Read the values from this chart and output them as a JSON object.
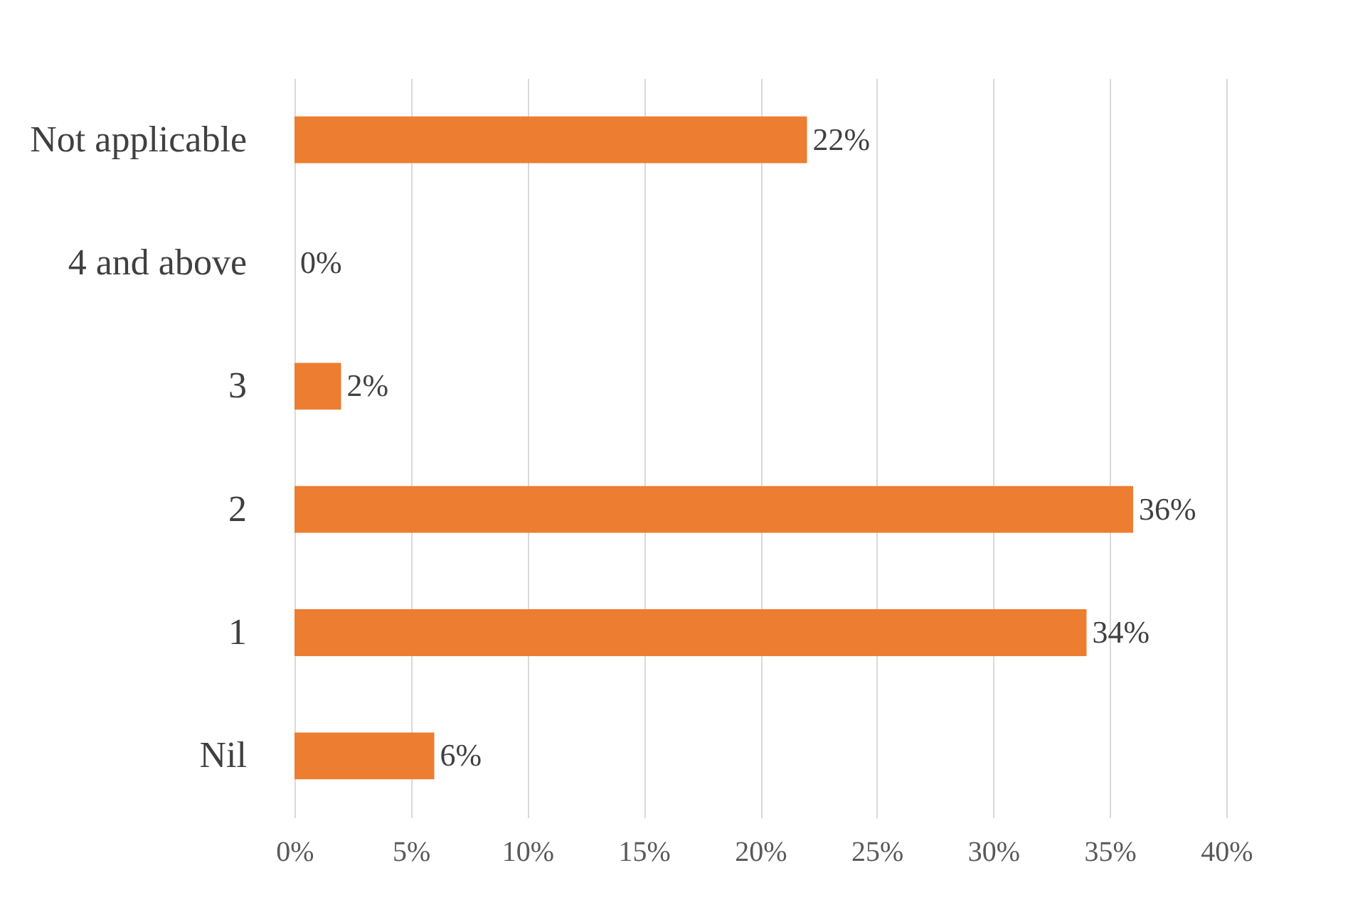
{
  "chart_data": {
    "type": "bar",
    "orientation": "horizontal",
    "categories": [
      "Not applicable",
      "4 and above",
      "3",
      "2",
      "1",
      "Nil"
    ],
    "values": [
      22,
      0,
      2,
      36,
      34,
      6
    ],
    "value_labels": [
      "22%",
      "0%",
      "2%",
      "36%",
      "34%",
      "6%"
    ],
    "color": "#ed7d31",
    "xlim": [
      0,
      40
    ],
    "xticks": [
      {
        "value": 0,
        "label": "0%"
      },
      {
        "value": 5,
        "label": "5%"
      },
      {
        "value": 10,
        "label": "10%"
      },
      {
        "value": 15,
        "label": "15%"
      },
      {
        "value": 20,
        "label": "20%"
      },
      {
        "value": 25,
        "label": "25%"
      },
      {
        "value": 30,
        "label": "30%"
      },
      {
        "value": 35,
        "label": "35%"
      },
      {
        "value": 40,
        "label": "40%"
      }
    ],
    "grid": "x"
  }
}
